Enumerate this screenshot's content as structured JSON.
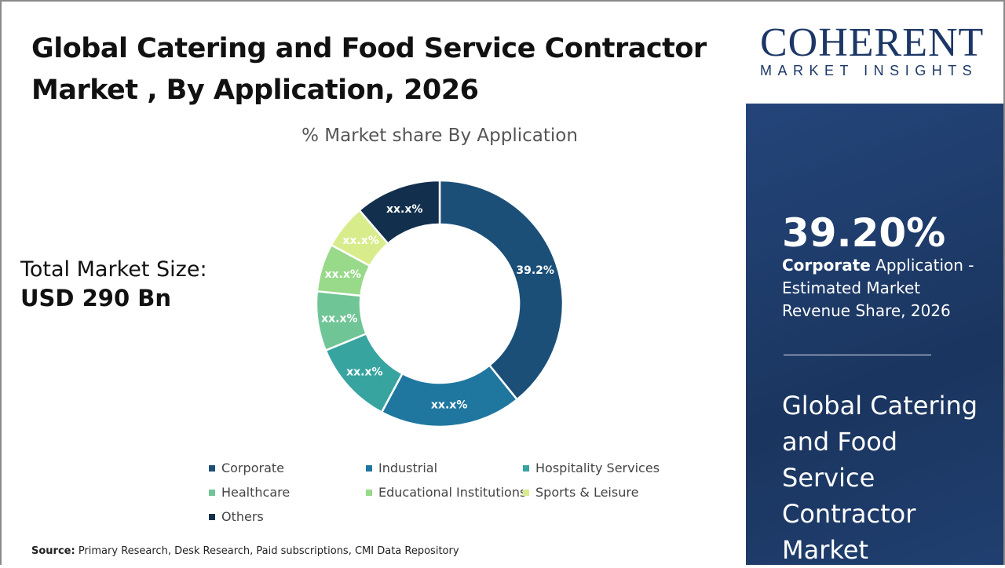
{
  "title": "Global Catering and Food Service Contractor Market , By Application, 2026",
  "total_label": "Total Market Size:",
  "total_value": "USD 290 Bn",
  "source_label": "Source:",
  "source_text": " Primary Research, Desk Research, Paid subscriptions, CMI Data Repository",
  "logo": {
    "big": "COHERENT",
    "small": "MARKET INSIGHTS"
  },
  "highlight": {
    "value": "39.20%",
    "bold": "Corporate",
    "rest": " Application - Estimated Market Revenue Share, 2026"
  },
  "market_name": "Global Catering and Food Service Contractor Market",
  "chart_data": {
    "type": "pie",
    "donut": true,
    "title": "% Market share By Application",
    "legend_position": "bottom",
    "categories": [
      "Corporate",
      "Industrial",
      "Hospitality Services",
      "Healthcare",
      "Educational Institutions",
      "Sports & Leisure",
      "Others"
    ],
    "values": [
      39.2,
      18.6,
      11.0,
      7.8,
      6.3,
      5.8,
      11.3
    ],
    "labels": [
      "39.2%",
      "xx.x%",
      "xx.x%",
      "xx.x%",
      "xx.x%",
      "xx.x%",
      "xx.x%"
    ],
    "colors": [
      "#1b4f78",
      "#1f77a0",
      "#37a4a0",
      "#70c596",
      "#98d98a",
      "#d9ec8c",
      "#12304d"
    ]
  }
}
